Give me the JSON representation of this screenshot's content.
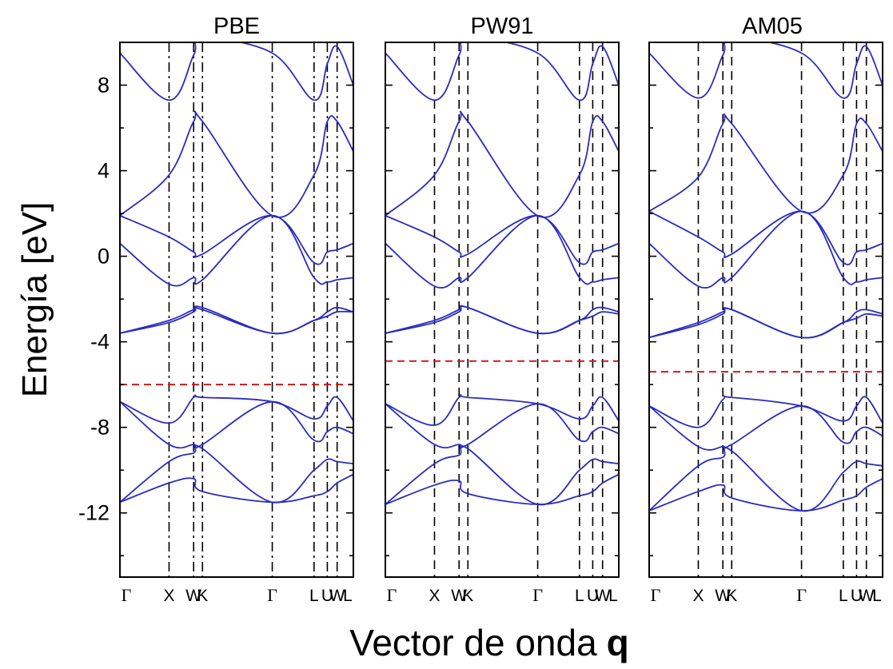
{
  "chart_data": {
    "type": "line",
    "ylabel": "Energía [eV]",
    "xlabel": "Vector de onda",
    "xlabel_bold": "q",
    "ylim": [
      -15,
      10
    ],
    "yticks": [
      8,
      4,
      0,
      -4,
      -8,
      -12
    ],
    "ytick_labels": [
      "8",
      "4",
      "0",
      "-4",
      "-8",
      "-12"
    ],
    "kpoint_labels": [
      "Γ",
      "X",
      "W",
      "K",
      "Γ",
      "L",
      "U",
      "W",
      "L"
    ],
    "kpoint_positions": [
      0,
      1.0,
      1.5,
      1.68,
      3.1,
      3.95,
      4.22,
      4.42,
      4.75
    ],
    "band_color": "#2b2bbf",
    "gap_line_color": "#cc1a1a",
    "panels": [
      {
        "title": "PBE",
        "kpoint_line_style": "dash-dot",
        "fermi_level": -6.0,
        "bands": [
          {
            "name": "",
            "values": [
              -11.5,
              -10.6,
              -10.4,
              -11.0,
              -11.5,
              -11.2,
              -11.0,
              -10.6,
              -10.2
            ]
          },
          {
            "name": "",
            "values": [
              -11.5,
              -9.6,
              -9.2,
              -9.0,
              -11.5,
              -10.0,
              -9.5,
              -9.6,
              -9.7
            ]
          },
          {
            "name": "",
            "values": [
              -6.8,
              -8.8,
              -8.8,
              -8.8,
              -6.8,
              -8.6,
              -8.2,
              -8.0,
              -8.3
            ]
          },
          {
            "name": "",
            "values": [
              -6.8,
              -7.8,
              -6.6,
              -6.6,
              -6.8,
              -7.6,
              -7.0,
              -6.6,
              -7.7
            ]
          },
          {
            "name": "",
            "values": [
              -3.6,
              -3.0,
              -2.5,
              -2.5,
              -3.6,
              -3.0,
              -2.6,
              -2.4,
              -2.6
            ]
          },
          {
            "name": "",
            "values": [
              -3.6,
              -3.1,
              -2.6,
              -2.4,
              -3.6,
              -3.0,
              -2.8,
              -2.6,
              -2.6
            ]
          },
          {
            "name": "",
            "values": [
              0.6,
              -1.3,
              -1.0,
              -1.1,
              1.9,
              -1.0,
              -1.2,
              -1.1,
              -1.0
            ]
          },
          {
            "name": "",
            "values": [
              1.9,
              0.9,
              0.2,
              0.1,
              1.9,
              -0.3,
              0.2,
              0.3,
              0.6
            ]
          },
          {
            "name": "",
            "values": [
              1.9,
              3.8,
              6.3,
              6.3,
              1.9,
              3.8,
              6.3,
              6.3,
              4.9
            ]
          },
          {
            "name": "",
            "values": [
              9.5,
              7.3,
              9.4,
              10.2,
              9.5,
              7.3,
              9.0,
              9.8,
              8.0
            ]
          }
        ]
      },
      {
        "title": "PW91",
        "kpoint_line_style": "dashed",
        "fermi_level": -4.9,
        "bands": [
          {
            "name": "",
            "values": [
              -11.6,
              -10.7,
              -10.5,
              -11.1,
              -11.6,
              -11.2,
              -11.0,
              -10.6,
              -10.2
            ]
          },
          {
            "name": "",
            "values": [
              -11.6,
              -9.7,
              -9.3,
              -9.0,
              -11.6,
              -10.0,
              -9.5,
              -9.6,
              -9.7
            ]
          },
          {
            "name": "",
            "values": [
              -6.9,
              -8.8,
              -8.8,
              -8.8,
              -6.9,
              -8.6,
              -8.2,
              -8.0,
              -8.3
            ]
          },
          {
            "name": "",
            "values": [
              -6.9,
              -7.9,
              -6.6,
              -6.6,
              -6.9,
              -7.6,
              -7.0,
              -6.6,
              -7.7
            ]
          },
          {
            "name": "",
            "values": [
              -3.6,
              -3.0,
              -2.5,
              -2.4,
              -3.6,
              -3.0,
              -2.5,
              -2.4,
              -2.6
            ]
          },
          {
            "name": "",
            "values": [
              -3.6,
              -3.1,
              -2.6,
              -2.4,
              -3.6,
              -3.0,
              -2.8,
              -2.6,
              -2.7
            ]
          },
          {
            "name": "",
            "values": [
              0.6,
              -1.4,
              -1.0,
              -1.0,
              1.9,
              -1.0,
              -1.2,
              -1.1,
              -1.0
            ]
          },
          {
            "name": "",
            "values": [
              1.9,
              0.9,
              0.2,
              0.1,
              1.9,
              -0.3,
              0.2,
              0.3,
              0.6
            ]
          },
          {
            "name": "",
            "values": [
              1.9,
              3.8,
              6.3,
              6.3,
              1.9,
              3.8,
              6.3,
              6.3,
              4.9
            ]
          },
          {
            "name": "",
            "values": [
              9.5,
              7.3,
              9.4,
              10.2,
              9.5,
              7.3,
              9.0,
              9.8,
              8.0
            ]
          }
        ]
      },
      {
        "title": "AM05",
        "kpoint_line_style": "dashed",
        "fermi_level": -5.4,
        "bands": [
          {
            "name": "",
            "values": [
              -11.9,
              -11.0,
              -10.7,
              -11.3,
              -11.9,
              -11.4,
              -11.2,
              -10.8,
              -10.4
            ]
          },
          {
            "name": "",
            "values": [
              -11.9,
              -9.8,
              -9.4,
              -9.1,
              -11.9,
              -10.1,
              -9.6,
              -9.7,
              -9.8
            ]
          },
          {
            "name": "",
            "values": [
              -7.0,
              -8.9,
              -8.9,
              -8.8,
              -7.0,
              -8.7,
              -8.2,
              -8.0,
              -8.4
            ]
          },
          {
            "name": "",
            "values": [
              -7.0,
              -8.0,
              -6.7,
              -6.6,
              -7.0,
              -7.7,
              -7.0,
              -6.6,
              -7.8
            ]
          },
          {
            "name": "",
            "values": [
              -3.8,
              -3.1,
              -2.6,
              -2.5,
              -3.8,
              -3.1,
              -2.6,
              -2.5,
              -2.7
            ]
          },
          {
            "name": "",
            "values": [
              -3.8,
              -3.2,
              -2.7,
              -2.5,
              -3.8,
              -3.1,
              -2.9,
              -2.7,
              -2.8
            ]
          },
          {
            "name": "",
            "values": [
              0.6,
              -1.4,
              -1.0,
              -1.0,
              2.1,
              -1.0,
              -1.2,
              -1.1,
              -1.0
            ]
          },
          {
            "name": "",
            "values": [
              2.1,
              0.9,
              0.2,
              0.1,
              2.1,
              -0.3,
              0.2,
              0.3,
              0.6
            ]
          },
          {
            "name": "",
            "values": [
              2.1,
              3.7,
              6.2,
              6.2,
              2.1,
              3.8,
              6.2,
              6.2,
              4.9
            ]
          },
          {
            "name": "",
            "values": [
              9.5,
              7.4,
              9.4,
              10.2,
              9.5,
              7.4,
              9.0,
              9.8,
              8.0
            ]
          }
        ]
      }
    ]
  }
}
